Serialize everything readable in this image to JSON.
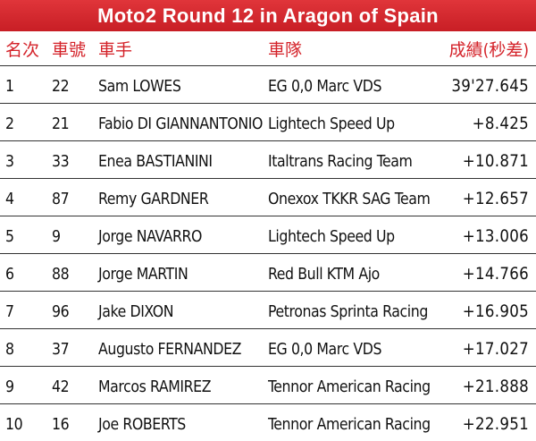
{
  "title": "Moto2 Round 12 in Aragon of Spain",
  "header": {
    "color": "#d42229",
    "pos": "名次",
    "num": "車號",
    "rider": "車手",
    "team": "車隊",
    "time": "成績(秒差)"
  },
  "rows": [
    {
      "pos": "1",
      "num": "22",
      "rider": "Sam LOWES",
      "team": "EG 0,0 Marc VDS",
      "time": "39'27.645"
    },
    {
      "pos": "2",
      "num": "21",
      "rider": "Fabio DI GIANNANTONIO",
      "team": "Lightech Speed Up",
      "time": "+8.425"
    },
    {
      "pos": "3",
      "num": "33",
      "rider": "Enea BASTIANINI",
      "team": "Italtrans Racing Team",
      "time": "+10.871"
    },
    {
      "pos": "4",
      "num": "87",
      "rider": "Remy GARDNER",
      "team": "Onexox TKKR SAG Team",
      "time": "+12.657"
    },
    {
      "pos": "5",
      "num": "9",
      "rider": "Jorge NAVARRO",
      "team": "Lightech Speed Up",
      "time": "+13.006"
    },
    {
      "pos": "6",
      "num": "88",
      "rider": "Jorge MARTIN",
      "team": "Red Bull KTM Ajo",
      "time": "+14.766"
    },
    {
      "pos": "7",
      "num": "96",
      "rider": "Jake DIXON",
      "team": "Petronas Sprinta Racing",
      "time": "+16.905"
    },
    {
      "pos": "8",
      "num": "37",
      "rider": "Augusto FERNANDEZ",
      "team": "EG 0,0 Marc VDS",
      "time": "+17.027"
    },
    {
      "pos": "9",
      "num": "42",
      "rider": "Marcos RAMIREZ",
      "team": "Tennor American Racing",
      "time": "+21.888"
    },
    {
      "pos": "10",
      "num": "16",
      "rider": "Joe ROBERTS",
      "team": "Tennor American Racing",
      "time": "+22.951"
    }
  ]
}
